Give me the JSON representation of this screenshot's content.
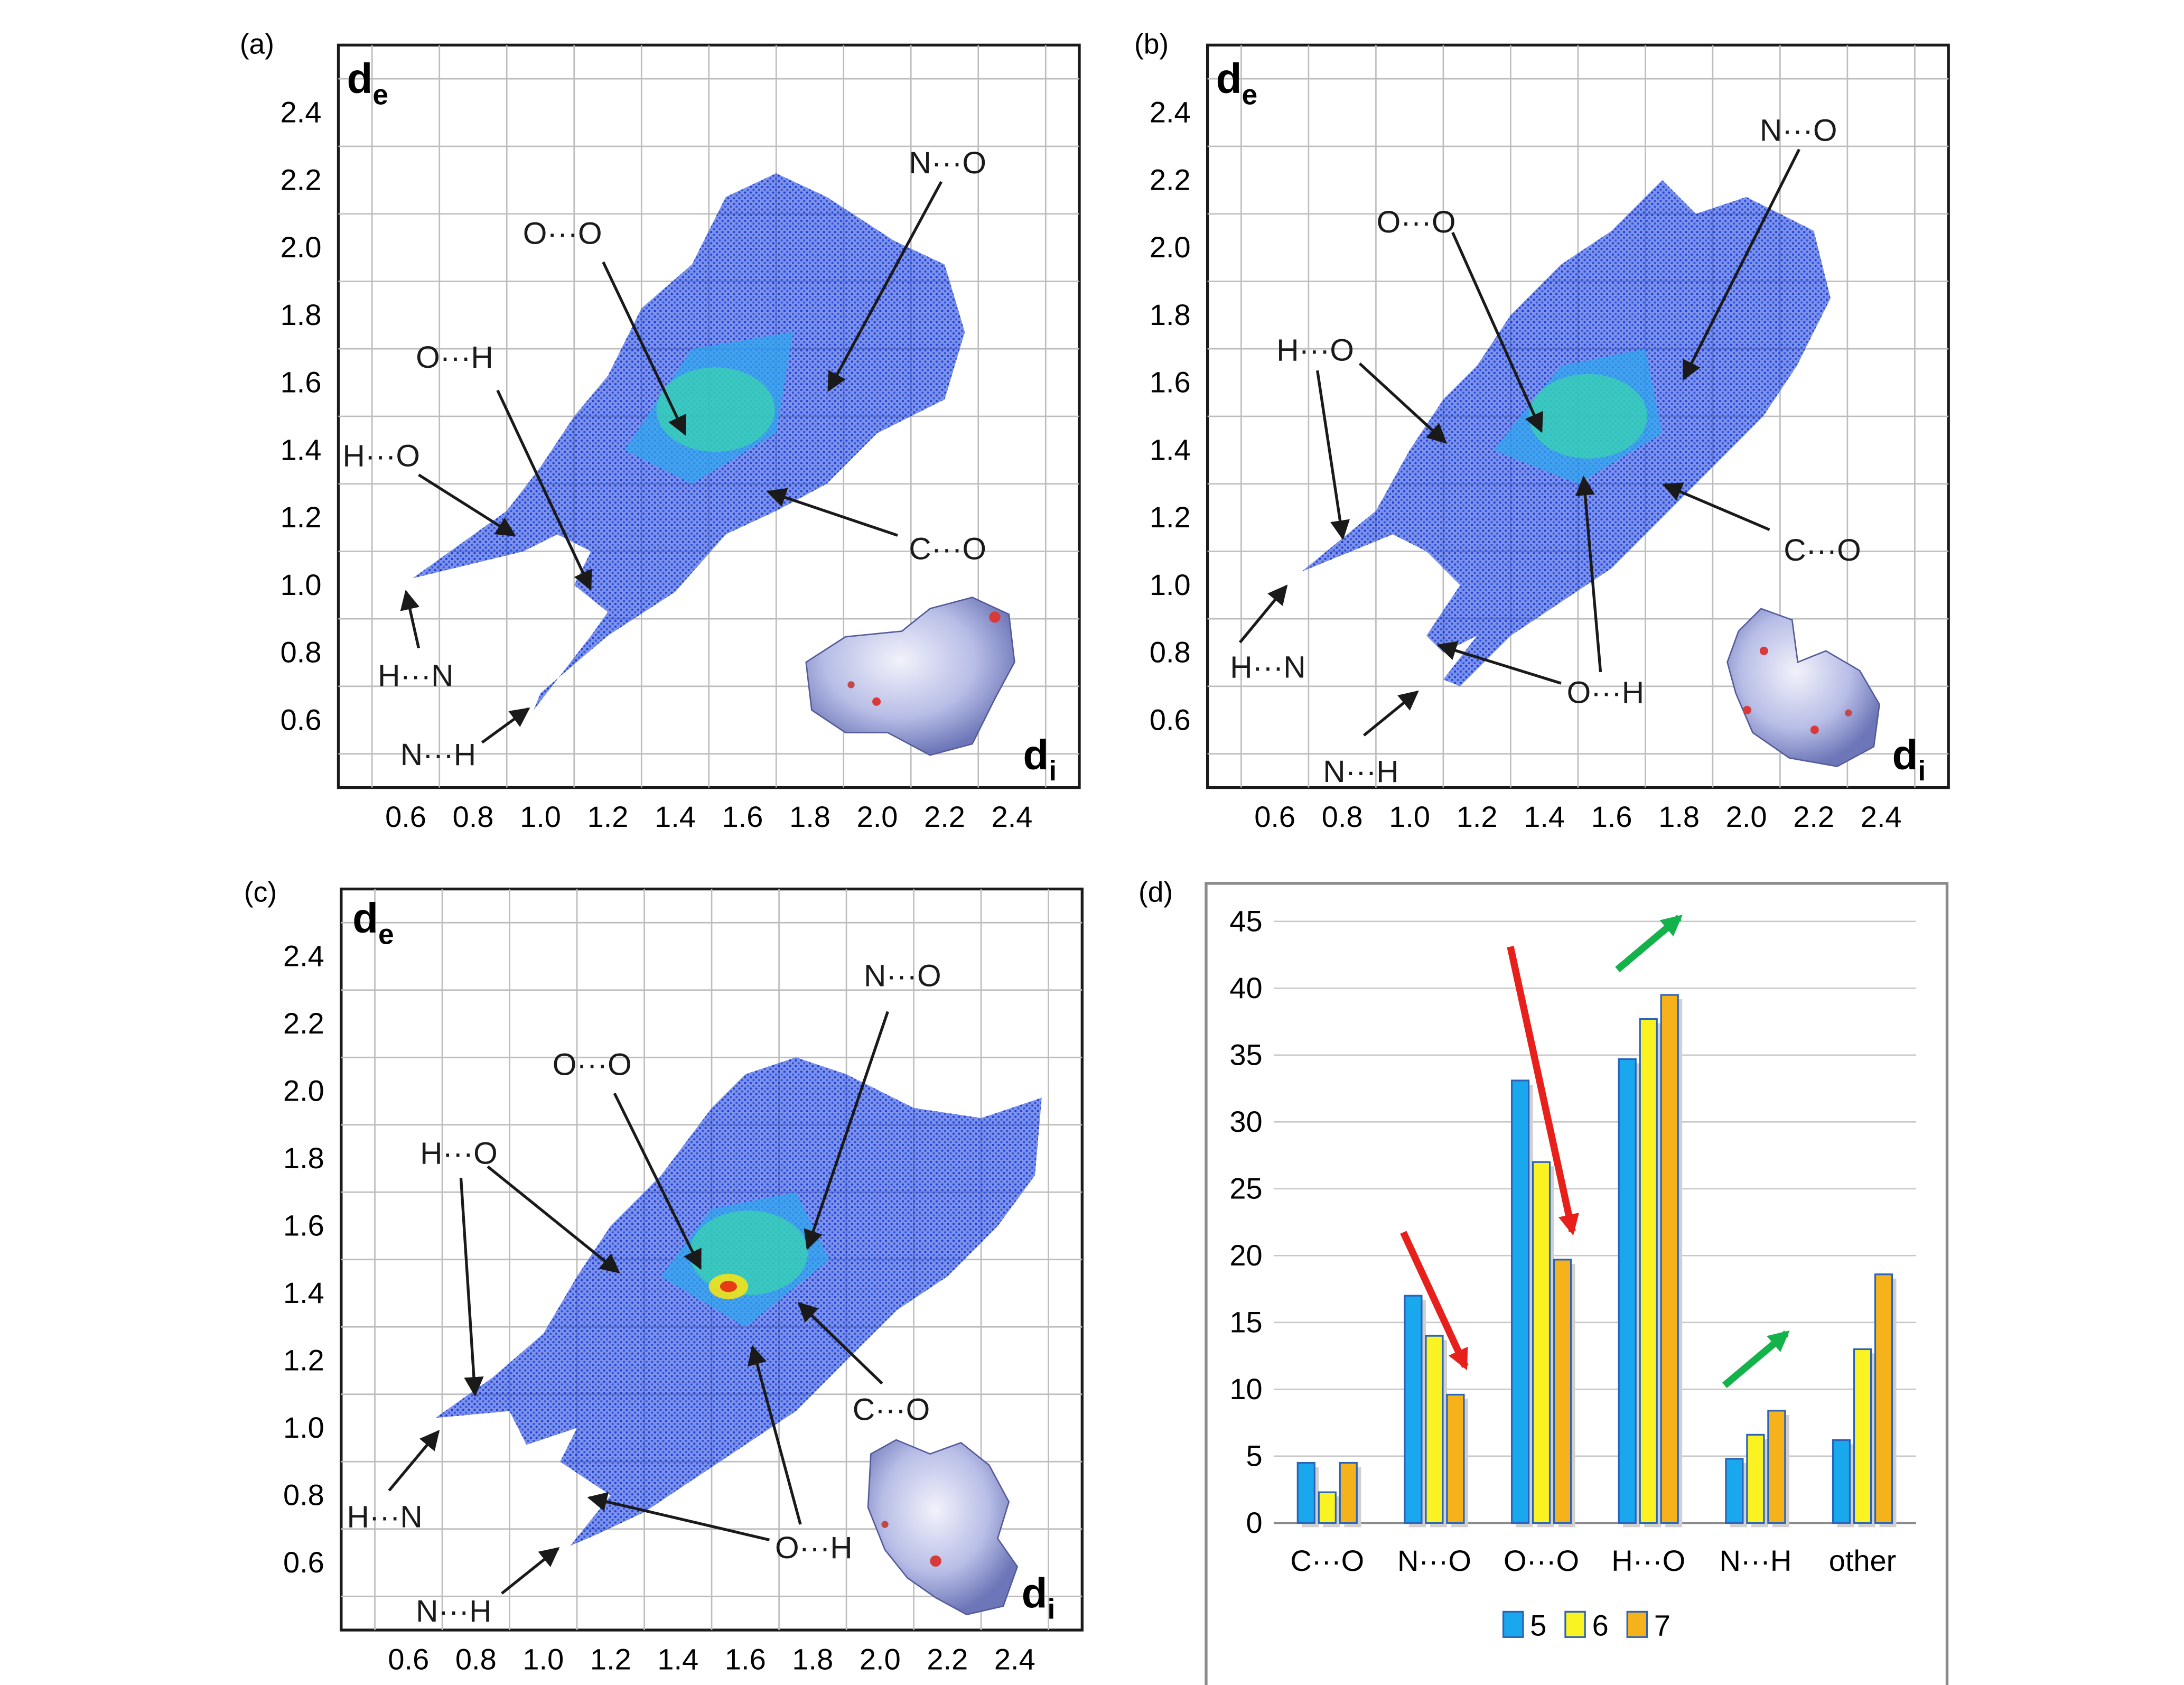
{
  "panels": [
    {
      "label": "(a)",
      "xaxis_label": "d",
      "xaxis_sub": "i",
      "yaxis_label": "d",
      "yaxis_sub": "e",
      "xticks": [
        "0.6",
        "0.8",
        "1.0",
        "1.2",
        "1.4",
        "1.6",
        "1.8",
        "2.0",
        "2.2",
        "2.4"
      ],
      "yticks": [
        "0.6",
        "0.8",
        "1.0",
        "1.2",
        "1.4",
        "1.6",
        "1.8",
        "2.0",
        "2.2",
        "2.4"
      ],
      "annotations": [
        "N···O",
        "O···O",
        "O···H",
        "H···O",
        "C···O",
        "H···N",
        "N···H"
      ]
    },
    {
      "label": "(b)",
      "xaxis_label": "d",
      "xaxis_sub": "i",
      "yaxis_label": "d",
      "yaxis_sub": "e",
      "xticks": [
        "0.6",
        "0.8",
        "1.0",
        "1.2",
        "1.4",
        "1.6",
        "1.8",
        "2.0",
        "2.2",
        "2.4"
      ],
      "yticks": [
        "0.6",
        "0.8",
        "1.0",
        "1.2",
        "1.4",
        "1.6",
        "1.8",
        "2.0",
        "2.2",
        "2.4"
      ],
      "annotations": [
        "N···O",
        "O···O",
        "H···O",
        "C···O",
        "O···H",
        "H···N",
        "N···H"
      ]
    },
    {
      "label": "(c)",
      "xaxis_label": "d",
      "xaxis_sub": "i",
      "yaxis_label": "d",
      "yaxis_sub": "e",
      "xticks": [
        "0.6",
        "0.8",
        "1.0",
        "1.2",
        "1.4",
        "1.6",
        "1.8",
        "2.0",
        "2.2",
        "2.4"
      ],
      "yticks": [
        "0.6",
        "0.8",
        "1.0",
        "1.2",
        "1.4",
        "1.6",
        "1.8",
        "2.0",
        "2.2",
        "2.4"
      ],
      "annotations": [
        "N···O",
        "O···O",
        "H···O",
        "C···O",
        "O···H",
        "H···N",
        "N···H"
      ]
    }
  ],
  "colors": {
    "density_low": "#1538d8",
    "density_mid": "#2fa5ee",
    "density_high": "#36e89a",
    "density_peak": "#f3e21a",
    "density_max": "#e83a14",
    "arrow_red": "#e8201c",
    "arrow_green": "#14b24a"
  },
  "chart_data": {
    "type": "bar",
    "panel_label": "(d)",
    "categories": [
      "C···O",
      "N···O",
      "O···O",
      "H···O",
      "N···H",
      "other"
    ],
    "series": [
      {
        "name": "5",
        "color": "#19a7ee",
        "values": [
          4.5,
          17.0,
          33.1,
          34.7,
          4.8,
          6.2
        ]
      },
      {
        "name": "6",
        "color": "#fbf321",
        "values": [
          2.3,
          14.0,
          27.0,
          37.7,
          6.6,
          13.0
        ]
      },
      {
        "name": "7",
        "color": "#f6b21a",
        "values": [
          4.5,
          9.6,
          19.7,
          39.5,
          8.4,
          18.6
        ]
      }
    ],
    "yticks": [
      "0",
      "5",
      "10",
      "15",
      "20",
      "25",
      "30",
      "35",
      "40",
      "45"
    ],
    "ylim": [
      0,
      45
    ],
    "grid": true,
    "legend": "bottom-center",
    "trend_arrows": [
      {
        "category": "N···O",
        "direction": "down",
        "color": "red"
      },
      {
        "category": "O···O",
        "direction": "down",
        "color": "red"
      },
      {
        "category": "H···O",
        "direction": "up",
        "color": "green"
      },
      {
        "category": "N···H",
        "direction": "up",
        "color": "green"
      }
    ]
  }
}
